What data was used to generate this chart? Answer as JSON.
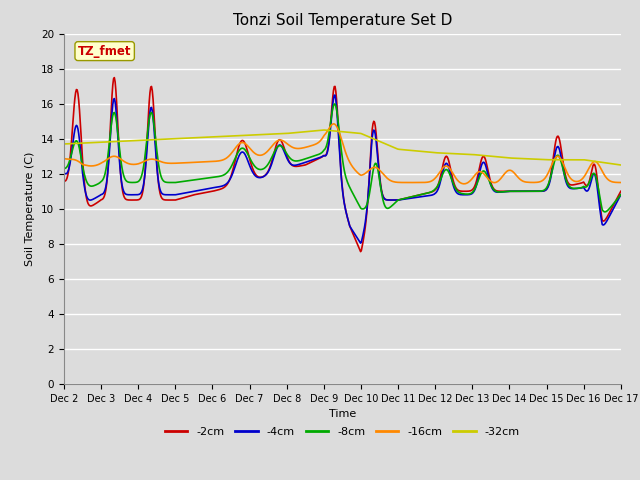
{
  "title": "Tonzi Soil Temperature Set D",
  "xlabel": "Time",
  "ylabel": "Soil Temperature (C)",
  "ylim": [
    0,
    20
  ],
  "yticks": [
    0,
    2,
    4,
    6,
    8,
    10,
    12,
    14,
    16,
    18,
    20
  ],
  "xtick_labels": [
    "Dec 2",
    "Dec 3",
    "Dec 4",
    "Dec 5",
    "Dec 6",
    "Dec 7",
    "Dec 8",
    "Dec 9",
    "Dec 10",
    "Dec 11",
    "Dec 12",
    "Dec 13",
    "Dec 14",
    "Dec 15",
    "Dec 16",
    "Dec 17"
  ],
  "legend_label": "TZ_fmet",
  "series_labels": [
    "-2cm",
    "-4cm",
    "-8cm",
    "-16cm",
    "-32cm"
  ],
  "series_colors": [
    "#cc0000",
    "#0000cc",
    "#00aa00",
    "#ff8800",
    "#cccc00"
  ],
  "line_width": 1.2,
  "bg_color": "#dcdcdc",
  "grid_color": "#ffffff",
  "title_fontsize": 11,
  "axis_fontsize": 8,
  "tick_fontsize": 7.5
}
